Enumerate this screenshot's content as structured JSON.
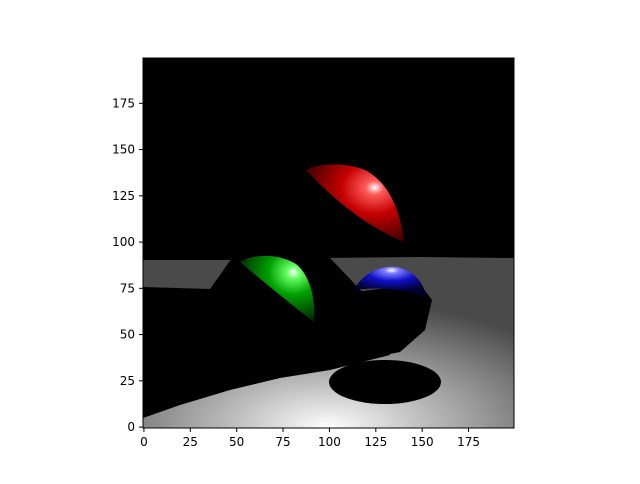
{
  "chart_data": {
    "type": "heatmap",
    "title": "",
    "xlabel": "",
    "ylabel": "",
    "image_size": [
      200,
      200
    ],
    "xlim": [
      -0.5,
      199.5
    ],
    "ylim": [
      199.5,
      -0.5
    ],
    "xticks": [
      0,
      25,
      50,
      75,
      100,
      125,
      150,
      175
    ],
    "yticks": [
      0,
      25,
      50,
      75,
      100,
      125,
      150,
      175
    ],
    "grid": false,
    "legend": "none",
    "scene": {
      "description_source": "ray-traced image displayed with imshow",
      "background_color": "#000000",
      "floor": {
        "top_row": 109,
        "color_range": [
          "#5a5a5a",
          "#f0f0f0"
        ],
        "highlight_center": [
          130,
          195
        ]
      },
      "spheres": [
        {
          "color": "#ff0000",
          "center": [
            100,
            90
          ],
          "radius": 40,
          "highlight": [
            120,
            72
          ]
        },
        {
          "color": "#00cc00",
          "center": [
            65,
            140
          ],
          "radius": 33,
          "highlight": [
            80,
            117
          ]
        },
        {
          "color": "#0000ff",
          "center": [
            130,
            140
          ],
          "radius": 23,
          "highlight": [
            133,
            112
          ]
        }
      ]
    }
  }
}
